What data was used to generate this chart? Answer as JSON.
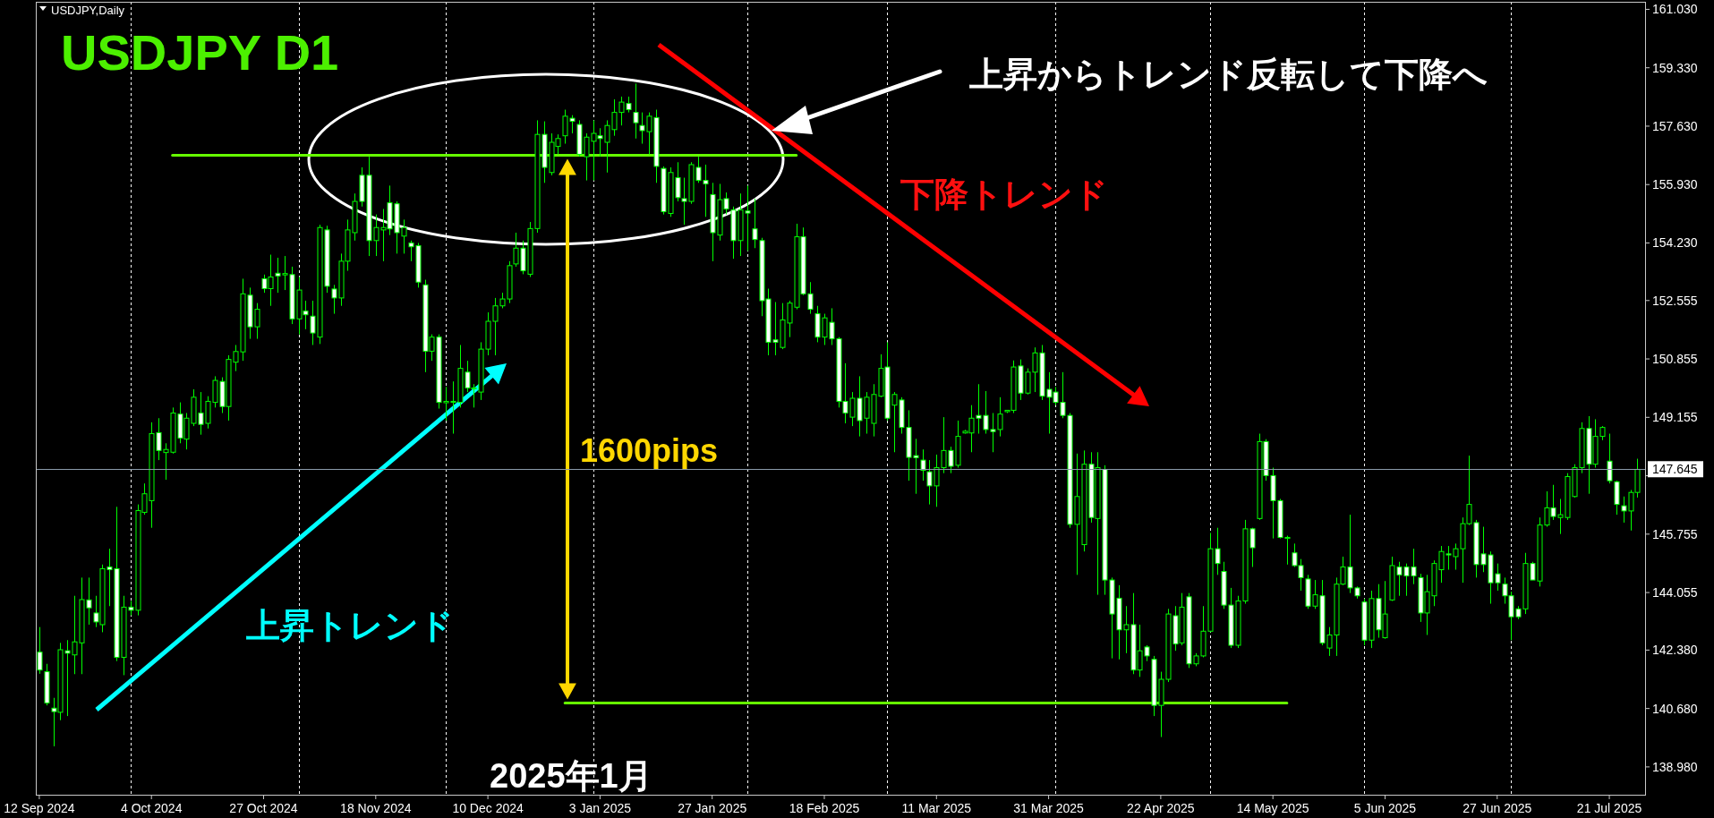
{
  "chart_data": {
    "type": "candlestick",
    "title": "USDJPY  D1",
    "subtitle": "USDJPY,Daily",
    "annotations": [
      "上昇からトレンド反転して下降へ",
      "下降トレンド",
      "上昇トレンド",
      "1600pips",
      "2025年1月"
    ],
    "categories": [
      "12 Sep 2024",
      null,
      null,
      null,
      null,
      null,
      null,
      null,
      null,
      null,
      null,
      null,
      null,
      null,
      null,
      null,
      "4 Oct 2024",
      null,
      null,
      null,
      null,
      null,
      null,
      null,
      null,
      null,
      null,
      null,
      null,
      null,
      null,
      null,
      "27 Oct 2024",
      null,
      null,
      null,
      null,
      null,
      null,
      null,
      null,
      null,
      null,
      null,
      null,
      null,
      null,
      null,
      "18 Nov 2024",
      null,
      null,
      null,
      null,
      null,
      null,
      null,
      null,
      null,
      null,
      null,
      null,
      null,
      null,
      null,
      "10 Dec 2024",
      null,
      null,
      null,
      null,
      null,
      null,
      null,
      null,
      null,
      null,
      null,
      null,
      null,
      null,
      null,
      "3 Jan 2025",
      null,
      null,
      null,
      null,
      null,
      null,
      null,
      null,
      null,
      null,
      null,
      null,
      null,
      null,
      null,
      "27 Jan 2025",
      null,
      null,
      null,
      null,
      null,
      null,
      null,
      null,
      null,
      null,
      null,
      null,
      null,
      null,
      null,
      "18 Feb 2025",
      null,
      null,
      null,
      null,
      null,
      null,
      null,
      null,
      null,
      null,
      null,
      null,
      null,
      null,
      null,
      "11 Mar 2025",
      null,
      null,
      null,
      null,
      null,
      null,
      null,
      null,
      null,
      null,
      null,
      null,
      null,
      null,
      null,
      "31 Mar 2025",
      null,
      null,
      null,
      null,
      null,
      null,
      null,
      null,
      null,
      null,
      null,
      null,
      null,
      null,
      null,
      "22 Apr 2025",
      null,
      null,
      null,
      null,
      null,
      null,
      null,
      null,
      null,
      null,
      null,
      null,
      null,
      null,
      null,
      "14 May 2025",
      null,
      null,
      null,
      null,
      null,
      null,
      null,
      null,
      null,
      null,
      null,
      null,
      null,
      null,
      null,
      "5 Jun 2025",
      null,
      null,
      null,
      null,
      null,
      null,
      null,
      null,
      null,
      null,
      null,
      null,
      null,
      null,
      null,
      "27 Jun 2025",
      null,
      null,
      null,
      null,
      null,
      null,
      null,
      null,
      null,
      null,
      null,
      null,
      null,
      null,
      null,
      "21 Jul 2025",
      null,
      null,
      null,
      null
    ],
    "ylim": [
      138.17,
      161.25
    ],
    "yticks": [
      {
        "value": 138.98,
        "label": "138.980"
      },
      {
        "value": 140.68,
        "label": "140.680"
      },
      {
        "value": 142.38,
        "label": "142.380"
      },
      {
        "value": 144.055,
        "label": "144.055"
      },
      {
        "value": 145.755,
        "label": "145.755"
      },
      {
        "value": 147.455,
        "label": null
      },
      {
        "value": 149.155,
        "label": "149.155"
      },
      {
        "value": 150.855,
        "label": "150.855"
      },
      {
        "value": 152.555,
        "label": "152.555"
      },
      {
        "value": 154.23,
        "label": "154.230"
      },
      {
        "value": 155.93,
        "label": "155.930"
      },
      {
        "value": 157.63,
        "label": "157.630"
      },
      {
        "value": 159.33,
        "label": "159.330"
      },
      {
        "value": 161.03,
        "label": "161.030"
      }
    ],
    "ref_lines": [
      {
        "axis": "y",
        "value": 147.645,
        "label": "147.645",
        "color": "#8a9aaa"
      }
    ],
    "series": [
      {
        "color": "#00ff00",
        "ohlc": [
          [
            142.32,
            143.05,
            141.69,
            141.8
          ],
          [
            141.75,
            141.98,
            140.77,
            140.84
          ],
          [
            140.69,
            140.99,
            139.58,
            140.59
          ],
          [
            140.57,
            142.59,
            140.34,
            142.39
          ],
          [
            142.36,
            142.67,
            140.46,
            142.29
          ],
          [
            142.24,
            143.96,
            141.68,
            142.62
          ],
          [
            142.59,
            144.49,
            141.68,
            143.85
          ],
          [
            143.84,
            144.49,
            143.12,
            143.61
          ],
          [
            143.46,
            143.96,
            143.05,
            143.2
          ],
          [
            143.12,
            144.87,
            142.9,
            144.75
          ],
          [
            144.8,
            145.33,
            143.66,
            144.72
          ],
          [
            144.75,
            146.55,
            142.06,
            142.17
          ],
          [
            142.17,
            143.96,
            141.65,
            143.63
          ],
          [
            143.63,
            143.81,
            143.39,
            143.54
          ],
          [
            143.54,
            146.62,
            143.39,
            146.44
          ],
          [
            146.39,
            147.23,
            146.32,
            146.93
          ],
          [
            146.73,
            149.01,
            145.94,
            148.68
          ],
          [
            148.71,
            149.13,
            147.91,
            148.19
          ],
          [
            148.13,
            148.4,
            147.34,
            148.22
          ],
          [
            148.14,
            149.44,
            148.1,
            149.28
          ],
          [
            149.25,
            149.59,
            148.4,
            148.55
          ],
          [
            148.52,
            149.28,
            148.22,
            149.13
          ],
          [
            148.98,
            149.97,
            148.9,
            149.74
          ],
          [
            149.28,
            149.89,
            148.65,
            148.95
          ],
          [
            148.98,
            149.77,
            148.83,
            149.62
          ],
          [
            149.59,
            150.35,
            149.44,
            150.23
          ],
          [
            150.2,
            150.32,
            149.28,
            149.47
          ],
          [
            149.47,
            150.96,
            149.06,
            150.84
          ],
          [
            150.76,
            151.26,
            150.5,
            151.07
          ],
          [
            151.06,
            153.19,
            150.8,
            152.75
          ],
          [
            152.71,
            152.93,
            151.44,
            151.79
          ],
          [
            151.79,
            152.48,
            151.44,
            152.3
          ],
          [
            153.19,
            153.31,
            152.78,
            152.9
          ],
          [
            152.9,
            153.89,
            152.4,
            153.24
          ],
          [
            153.35,
            153.8,
            152.78,
            153.27
          ],
          [
            153.3,
            153.85,
            152.86,
            153.34
          ],
          [
            153.31,
            153.54,
            151.87,
            152.02
          ],
          [
            152.02,
            153.24,
            151.57,
            152.86
          ],
          [
            152.25,
            152.55,
            151.72,
            152.14
          ],
          [
            152.1,
            152.55,
            151.26,
            151.61
          ],
          [
            151.49,
            154.76,
            151.29,
            154.68
          ],
          [
            154.61,
            154.73,
            152.78,
            152.97
          ],
          [
            152.89,
            153.01,
            152.17,
            152.63
          ],
          [
            152.63,
            153.92,
            152.4,
            153.7
          ],
          [
            153.7,
            154.91,
            153.42,
            154.61
          ],
          [
            154.53,
            155.67,
            154.3,
            155.44
          ],
          [
            156.2,
            156.43,
            155.29,
            155.44
          ],
          [
            156.2,
            156.74,
            153.85,
            154.3
          ],
          [
            154.3,
            155.06,
            153.85,
            154.68
          ],
          [
            154.61,
            155.22,
            153.7,
            154.68
          ],
          [
            155.4,
            155.9,
            154.46,
            154.64
          ],
          [
            155.37,
            155.44,
            153.92,
            154.53
          ],
          [
            154.43,
            154.91,
            153.92,
            154.68
          ],
          [
            154.23,
            154.3,
            153.7,
            154.12
          ],
          [
            154.15,
            154.23,
            152.93,
            153.09
          ],
          [
            153.01,
            153.16,
            150.47,
            151.08
          ],
          [
            151.08,
            151.57,
            150.8,
            151.49
          ],
          [
            151.49,
            151.57,
            149.41,
            149.59
          ],
          [
            149.58,
            150.04,
            149.06,
            149.62
          ],
          [
            149.59,
            150.2,
            148.68,
            149.62
          ],
          [
            149.59,
            151.26,
            149.44,
            150.58
          ],
          [
            150.47,
            150.8,
            149.89,
            150.01
          ],
          [
            149.99,
            150.12,
            149.44,
            150.01
          ],
          [
            149.89,
            151.34,
            149.66,
            151.14
          ],
          [
            151.14,
            152.21,
            150.96,
            151.95
          ],
          [
            151.95,
            152.63,
            150.96,
            152.4
          ],
          [
            152.4,
            152.78,
            152.33,
            152.6
          ],
          [
            152.6,
            153.7,
            152.48,
            153.57
          ],
          [
            153.62,
            154.53,
            153.54,
            154.08
          ],
          [
            154.08,
            154.3,
            153.32,
            153.42
          ],
          [
            153.32,
            154.84,
            153.24,
            154.65
          ],
          [
            154.65,
            157.8,
            154.53,
            157.39
          ],
          [
            157.39,
            157.77,
            155.98,
            156.43
          ],
          [
            156.28,
            157.42,
            156.2,
            157.16
          ],
          [
            157.04,
            157.39,
            156.81,
            157.27
          ],
          [
            157.35,
            158.11,
            157.12,
            157.92
          ],
          [
            157.86,
            157.95,
            157.42,
            157.77
          ],
          [
            157.68,
            157.8,
            156.74,
            156.81
          ],
          [
            156.74,
            157.42,
            156.05,
            157.31
          ],
          [
            157.19,
            157.8,
            156.05,
            157.42
          ],
          [
            157.35,
            157.57,
            156.74,
            157.27
          ],
          [
            157.16,
            157.8,
            156.28,
            157.65
          ],
          [
            157.53,
            158.41,
            157.35,
            158.03
          ],
          [
            158.03,
            158.49,
            157.65,
            158.33
          ],
          [
            158.29,
            158.49,
            158.03,
            158.11
          ],
          [
            158.03,
            158.87,
            157.27,
            157.73
          ],
          [
            157.65,
            158.03,
            157.12,
            157.5
          ],
          [
            157.47,
            158.03,
            156.81,
            157.92
          ],
          [
            157.88,
            158.11,
            155.98,
            156.46
          ],
          [
            156.4,
            156.46,
            155.06,
            155.14
          ],
          [
            155.09,
            156.43,
            154.99,
            156.28
          ],
          [
            156.13,
            156.58,
            155.44,
            155.55
          ],
          [
            155.52,
            156.13,
            154.76,
            155.44
          ],
          [
            155.44,
            156.58,
            155.37,
            156.51
          ],
          [
            156.43,
            156.74,
            155.98,
            156.05
          ],
          [
            156.05,
            156.51,
            154.99,
            155.95
          ],
          [
            155.64,
            155.98,
            153.7,
            154.53
          ],
          [
            154.46,
            155.95,
            154.3,
            155.49
          ],
          [
            155.52,
            155.7,
            155.06,
            155.22
          ],
          [
            155.19,
            155.29,
            153.77,
            154.3
          ],
          [
            154.3,
            155.67,
            153.85,
            155.19
          ],
          [
            155.16,
            155.9,
            154.0,
            155.1
          ],
          [
            154.64,
            155.52,
            154.08,
            154.33
          ],
          [
            154.3,
            154.38,
            152.1,
            152.55
          ],
          [
            152.6,
            152.9,
            150.96,
            151.34
          ],
          [
            151.41,
            152.51,
            150.96,
            151.34
          ],
          [
            151.19,
            152.48,
            151.14,
            151.99
          ],
          [
            151.9,
            152.55,
            151.49,
            152.48
          ],
          [
            152.36,
            154.79,
            152.3,
            154.41
          ],
          [
            154.41,
            154.68,
            152.71,
            152.75
          ],
          [
            152.75,
            153.09,
            152.17,
            152.3
          ],
          [
            152.17,
            152.4,
            151.34,
            151.49
          ],
          [
            151.49,
            152.17,
            151.26,
            152.05
          ],
          [
            151.92,
            152.33,
            151.26,
            151.44
          ],
          [
            151.44,
            151.49,
            149.44,
            149.62
          ],
          [
            149.62,
            150.73,
            148.98,
            149.28
          ],
          [
            149.16,
            149.89,
            148.9,
            149.71
          ],
          [
            149.71,
            150.35,
            148.6,
            149.06
          ],
          [
            149.13,
            149.89,
            148.68,
            149.74
          ],
          [
            148.98,
            150.12,
            148.6,
            149.82
          ],
          [
            149.77,
            150.99,
            149.74,
            150.58
          ],
          [
            150.62,
            151.34,
            149.06,
            149.13
          ],
          [
            149.51,
            149.89,
            148.14,
            149.82
          ],
          [
            149.66,
            149.74,
            148.68,
            148.86
          ],
          [
            148.86,
            149.36,
            147.31,
            147.99
          ],
          [
            148.04,
            148.53,
            146.93,
            147.98
          ],
          [
            147.91,
            148.22,
            147.31,
            147.61
          ],
          [
            147.57,
            147.91,
            146.62,
            147.16
          ],
          [
            147.16,
            148.07,
            146.55,
            147.69
          ],
          [
            147.69,
            149.16,
            147.53,
            148.19
          ],
          [
            148.19,
            148.3,
            147.53,
            147.73
          ],
          [
            147.76,
            149.06,
            147.69,
            148.6
          ],
          [
            148.7,
            148.79,
            148.68,
            148.75
          ],
          [
            148.7,
            149.51,
            148.14,
            149.13
          ],
          [
            149.21,
            150.12,
            148.68,
            149.13
          ],
          [
            149.21,
            149.92,
            148.68,
            148.8
          ],
          [
            148.8,
            149.28,
            148.14,
            148.74
          ],
          [
            148.8,
            149.74,
            148.6,
            149.25
          ],
          [
            149.32,
            149.36,
            149.28,
            149.36
          ],
          [
            149.36,
            150.81,
            149.28,
            150.62
          ],
          [
            150.65,
            150.84,
            149.66,
            149.86
          ],
          [
            149.86,
            150.58,
            149.82,
            150.47
          ],
          [
            150.47,
            151.19,
            149.89,
            151.03
          ],
          [
            151.03,
            151.26,
            149.66,
            149.77
          ],
          [
            149.97,
            150.47,
            148.68,
            149.74
          ],
          [
            149.89,
            150.04,
            149.51,
            149.59
          ],
          [
            149.59,
            150.47,
            149.13,
            149.21
          ],
          [
            149.21,
            149.28,
            145.94,
            146.04
          ],
          [
            146.04,
            148.1,
            144.57,
            146.85
          ],
          [
            145.45,
            148.19,
            145.25,
            147.79
          ],
          [
            147.79,
            148.14,
            146.09,
            146.24
          ],
          [
            146.21,
            148.14,
            143.99,
            147.69
          ],
          [
            147.64,
            147.76,
            143.99,
            144.42
          ],
          [
            144.42,
            144.49,
            142.14,
            143.43
          ],
          [
            143.89,
            144.27,
            142.11,
            142.97
          ],
          [
            142.97,
            143.66,
            142.29,
            143.12
          ],
          [
            143.12,
            144.04,
            141.68,
            141.8
          ],
          [
            141.8,
            143.12,
            141.6,
            142.36
          ],
          [
            142.47,
            142.52,
            142.06,
            142.21
          ],
          [
            142.11,
            142.21,
            140.46,
            140.77
          ],
          [
            140.77,
            141.75,
            139.85,
            141.53
          ],
          [
            141.53,
            143.58,
            141.45,
            143.43
          ],
          [
            143.38,
            143.66,
            142.36,
            142.56
          ],
          [
            142.59,
            144.04,
            142.52,
            143.63
          ],
          [
            143.93,
            144.04,
            141.86,
            141.98
          ],
          [
            141.98,
            142.29,
            141.91,
            142.21
          ],
          [
            142.21,
            143.66,
            142.17,
            142.93
          ],
          [
            142.93,
            145.79,
            142.9,
            145.33
          ],
          [
            145.33,
            145.94,
            144.57,
            144.9
          ],
          [
            144.67,
            144.95,
            143.58,
            143.69
          ],
          [
            143.69,
            144.19,
            142.44,
            142.52
          ],
          [
            142.52,
            143.96,
            142.44,
            143.81
          ],
          [
            143.81,
            146.17,
            143.73,
            145.91
          ],
          [
            145.91,
            145.94,
            144.8,
            145.36
          ],
          [
            146.21,
            148.68,
            146.17,
            148.45
          ],
          [
            148.45,
            148.52,
            147.31,
            147.46
          ],
          [
            147.46,
            147.69,
            145.63,
            146.73
          ],
          [
            146.73,
            146.78,
            145.63,
            145.66
          ],
          [
            145.63,
            145.71,
            144.87,
            145.66
          ],
          [
            145.21,
            145.48,
            144.8,
            144.84
          ],
          [
            144.84,
            145.03,
            144.11,
            144.49
          ],
          [
            144.45,
            144.57,
            143.58,
            143.66
          ],
          [
            143.66,
            144.42,
            143.58,
            143.99
          ],
          [
            143.96,
            144.42,
            142.52,
            142.59
          ],
          [
            142.44,
            143.05,
            142.21,
            142.82
          ],
          [
            142.82,
            144.49,
            142.21,
            144.3
          ],
          [
            144.3,
            145.1,
            144.27,
            144.8
          ],
          [
            144.8,
            146.32,
            144.04,
            144.19
          ],
          [
            144.19,
            144.23,
            143.88,
            143.96
          ],
          [
            143.78,
            143.88,
            142.52,
            142.67
          ],
          [
            142.67,
            144.11,
            142.44,
            143.88
          ],
          [
            143.88,
            144.3,
            142.74,
            142.97
          ],
          [
            142.74,
            144.39,
            142.71,
            143.43
          ],
          [
            143.84,
            145.1,
            143.81,
            144.84
          ],
          [
            144.8,
            144.95,
            143.96,
            144.57
          ],
          [
            144.8,
            144.9,
            143.96,
            144.54
          ],
          [
            144.8,
            145.33,
            144.3,
            144.54
          ],
          [
            144.49,
            144.6,
            143.2,
            143.46
          ],
          [
            143.46,
            144.57,
            142.82,
            144.08
          ],
          [
            143.96,
            144.99,
            143.66,
            144.9
          ],
          [
            144.72,
            145.41,
            144.34,
            145.25
          ],
          [
            145.18,
            145.41,
            144.72,
            145.15
          ],
          [
            145.1,
            145.48,
            144.72,
            145.33
          ],
          [
            145.33,
            146.24,
            144.34,
            146.06
          ],
          [
            146.06,
            148.04,
            146.02,
            146.62
          ],
          [
            146.09,
            146.17,
            144.49,
            144.87
          ],
          [
            145.18,
            145.97,
            144.65,
            144.87
          ],
          [
            145.15,
            145.25,
            143.73,
            144.34
          ],
          [
            144.6,
            144.9,
            144.11,
            144.34
          ],
          [
            144.3,
            144.49,
            143.73,
            143.96
          ],
          [
            143.96,
            144.08,
            142.67,
            143.35
          ],
          [
            143.58,
            143.66,
            143.28,
            143.35
          ],
          [
            143.58,
            145.21,
            143.43,
            144.9
          ],
          [
            144.9,
            144.95,
            144.42,
            144.42
          ],
          [
            144.39,
            146.24,
            144.23,
            146.02
          ],
          [
            146.02,
            147.0,
            145.97,
            146.52
          ],
          [
            146.52,
            147.19,
            146.17,
            146.27
          ],
          [
            146.24,
            146.78,
            145.76,
            146.32
          ],
          [
            146.24,
            147.53,
            146.17,
            147.43
          ],
          [
            146.85,
            147.79,
            146.82,
            147.69
          ],
          [
            147.69,
            149.01,
            147.53,
            148.83
          ],
          [
            148.83,
            149.19,
            146.93,
            147.79
          ],
          [
            147.79,
            149.1,
            147.69,
            148.6
          ],
          [
            148.6,
            148.9,
            148.49,
            148.86
          ],
          [
            147.88,
            148.68,
            147.23,
            147.31
          ],
          [
            147.28,
            147.31,
            146.32,
            146.62
          ],
          [
            146.58,
            146.85,
            146.09,
            146.43
          ],
          [
            146.43,
            147.04,
            145.86,
            146.97
          ],
          [
            146.97,
            147.95,
            146.82,
            147.64
          ]
        ]
      },
      {
        "type": "line",
        "color": "#66ff00",
        "values": [
          null,
          null,
          null,
          null,
          null,
          null,
          null,
          null,
          null,
          null,
          null,
          null,
          null,
          null,
          null,
          null,
          null,
          null,
          null,
          156.78,
          156.78,
          156.78,
          156.78,
          156.78,
          156.78,
          156.78,
          156.78,
          156.78,
          156.78,
          156.78,
          156.78,
          156.78,
          156.78,
          156.78,
          156.78,
          156.78,
          156.78,
          156.78,
          156.78,
          156.78,
          156.78,
          156.78,
          156.78,
          156.78,
          156.78,
          156.78,
          156.78,
          156.78,
          156.78,
          156.78,
          156.78,
          156.78,
          156.78,
          156.78,
          156.78,
          156.78,
          156.78,
          156.78,
          156.78,
          156.78,
          156.78,
          156.78,
          156.78,
          156.78,
          156.78,
          156.78,
          156.78,
          156.78,
          156.78,
          156.78,
          156.78,
          156.78,
          156.78,
          156.78,
          156.78,
          156.78,
          156.78,
          156.78,
          156.78,
          156.78,
          156.78,
          156.78,
          156.78,
          156.78,
          156.78,
          156.78,
          156.78,
          156.78,
          156.78,
          156.78,
          156.78,
          156.78,
          156.78,
          156.78,
          156.78,
          156.78,
          156.78,
          156.78,
          156.78,
          156.78,
          156.78,
          156.78,
          156.78,
          156.78,
          156.78,
          156.78,
          156.78,
          156.78,
          156.78,
          null,
          null,
          null,
          null,
          null,
          null,
          null,
          null,
          null,
          null,
          null,
          null,
          null,
          null,
          null,
          null,
          null,
          null,
          null,
          null,
          null,
          null,
          null,
          null,
          null,
          null,
          null,
          null,
          null,
          null,
          null,
          null,
          null,
          null,
          null,
          null,
          null,
          null,
          null,
          null,
          null,
          null,
          null,
          null,
          null,
          null,
          null,
          null,
          null,
          null,
          null,
          null,
          null,
          null,
          null,
          null,
          null,
          null,
          null,
          null,
          null,
          null,
          null,
          null,
          null,
          null,
          null,
          null,
          null,
          null,
          null,
          null,
          null,
          null,
          null,
          null,
          null,
          null,
          null,
          null,
          null,
          null,
          null,
          null,
          null,
          null,
          null,
          null,
          null,
          null,
          null,
          null,
          null,
          null,
          null,
          null,
          null,
          null,
          null,
          null,
          null,
          null,
          null,
          null,
          null,
          null,
          null,
          null,
          null,
          null,
          null,
          null,
          null,
          null,
          null,
          null,
          null,
          null,
          null,
          null
        ]
      },
      {
        "type": "line",
        "color": "#66ff00",
        "values": [
          null,
          null,
          null,
          null,
          null,
          null,
          null,
          null,
          null,
          null,
          null,
          null,
          null,
          null,
          null,
          null,
          null,
          null,
          null,
          null,
          null,
          null,
          null,
          null,
          null,
          null,
          null,
          null,
          null,
          null,
          null,
          null,
          null,
          null,
          null,
          null,
          null,
          null,
          null,
          null,
          null,
          null,
          null,
          null,
          null,
          null,
          null,
          null,
          null,
          null,
          null,
          null,
          null,
          null,
          null,
          null,
          null,
          null,
          null,
          null,
          null,
          null,
          null,
          null,
          null,
          null,
          null,
          null,
          null,
          null,
          null,
          null,
          null,
          null,
          null,
          140.84,
          140.84,
          140.84,
          140.84,
          140.84,
          140.84,
          140.84,
          140.84,
          140.84,
          140.84,
          140.84,
          140.84,
          140.84,
          140.84,
          140.84,
          140.84,
          140.84,
          140.84,
          140.84,
          140.84,
          140.84,
          140.84,
          140.84,
          140.84,
          140.84,
          140.84,
          140.84,
          140.84,
          140.84,
          140.84,
          140.84,
          140.84,
          140.84,
          140.84,
          140.84,
          140.84,
          140.84,
          140.84,
          140.84,
          140.84,
          140.84,
          140.84,
          140.84,
          140.84,
          140.84,
          140.84,
          140.84,
          140.84,
          140.84,
          140.84,
          140.84,
          140.84,
          140.84,
          140.84,
          140.84,
          140.84,
          140.84,
          140.84,
          140.84,
          140.84,
          140.84,
          140.84,
          140.84,
          140.84,
          140.84,
          140.84,
          140.84,
          140.84,
          140.84,
          140.84,
          140.84,
          140.84,
          140.84,
          140.84,
          140.84,
          140.84,
          140.84,
          140.84,
          140.84,
          140.84,
          140.84,
          140.84,
          140.84,
          140.84,
          140.84,
          140.84,
          140.84,
          140.84,
          140.84,
          140.84,
          140.84,
          140.84,
          140.84,
          140.84,
          140.84,
          140.84,
          140.84,
          140.84,
          140.84,
          140.84,
          140.84,
          140.84,
          140.84,
          140.84,
          null,
          null,
          null,
          null,
          null,
          null,
          null,
          null,
          null,
          null,
          null,
          null,
          null,
          null,
          null,
          null,
          null,
          null,
          null,
          null,
          null,
          null,
          null,
          null,
          null,
          null,
          null,
          null,
          null,
          null,
          null,
          null,
          null,
          null,
          null,
          null,
          null,
          null,
          null,
          null,
          null,
          null,
          null,
          null,
          null,
          null,
          null,
          null,
          null,
          null
        ]
      }
    ]
  }
}
